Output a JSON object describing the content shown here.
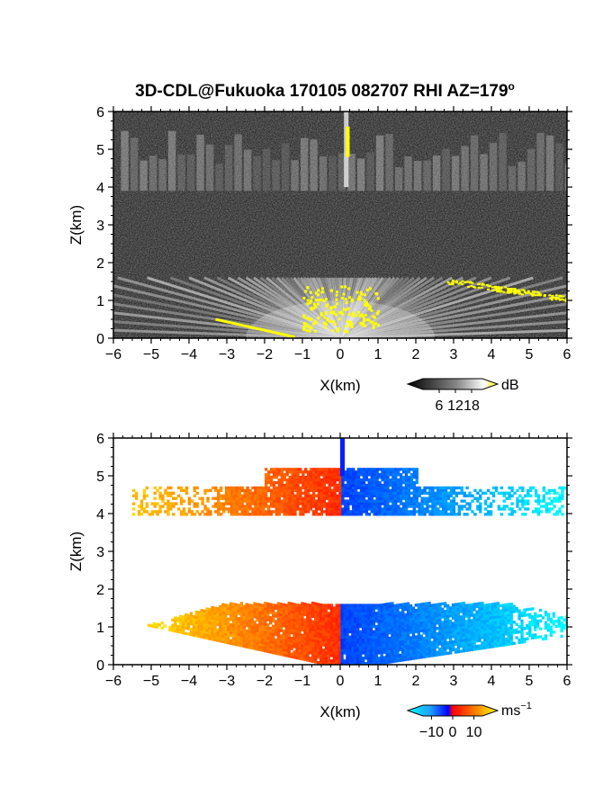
{
  "figure": {
    "title": "3D-CDL@Fukuoka 170105 082707 RHI AZ=179",
    "title_superscript": "o"
  },
  "chart_data": [
    {
      "type": "heatmap",
      "title": "3D-CDL@Fukuoka 170105 082707 RHI AZ=179°",
      "xlabel": "X(km)",
      "ylabel": "Z(km)",
      "xlim": [
        -6,
        6
      ],
      "ylim": [
        0,
        6
      ],
      "x_ticks": [
        "−6",
        "−5",
        "−4",
        "−3",
        "−2",
        "−1",
        "0",
        "1",
        "2",
        "3",
        "4",
        "5",
        "6"
      ],
      "y_ticks": [
        "0",
        "1",
        "2",
        "3",
        "4",
        "5",
        "6"
      ],
      "colormap": "grayscale (dark to white, yellow for high values)",
      "colorbar": {
        "unit": "dB",
        "ticks": [
          "6",
          "12",
          "18"
        ],
        "range": [
          0,
          22
        ]
      },
      "features": [
        {
          "name": "boundary-layer echo fan",
          "z_range_km": [
            0,
            1.6
          ],
          "x_range_km": [
            -6,
            6
          ],
          "intensity_db": 14
        },
        {
          "name": "upper cloud layer",
          "z_range_km": [
            3.9,
            6.0
          ],
          "x_range_km": [
            -6,
            6
          ],
          "intensity_db": 10
        },
        {
          "name": "near-vertical strong echo",
          "z_range_km": [
            4.8,
            5.6
          ],
          "x_km": 0.15,
          "intensity_db": 20
        },
        {
          "name": "strong echo along top of fan",
          "z_range_km": [
            0.9,
            1.6
          ],
          "x_range_km": [
            2.8,
            6.0
          ],
          "intensity_db": 20
        }
      ]
    },
    {
      "type": "heatmap",
      "xlabel": "X(km)",
      "ylabel": "Z(km)",
      "xlim": [
        -6,
        6
      ],
      "ylim": [
        0,
        6
      ],
      "x_ticks": [
        "−6",
        "−5",
        "−4",
        "−3",
        "−2",
        "−1",
        "0",
        "1",
        "2",
        "3",
        "4",
        "5",
        "6"
      ],
      "y_ticks": [
        "0",
        "1",
        "2",
        "3",
        "4",
        "5",
        "6"
      ],
      "colormap": "diverging (cyan/blue negative, red/orange/yellow positive)",
      "colorbar": {
        "unit": "ms",
        "unit_exponent": "−1",
        "ticks": [
          "−10",
          "0",
          "10"
        ],
        "range": [
          -14,
          14
        ]
      },
      "features": [
        {
          "name": "lower layer, left of radar",
          "z_range_km": [
            0,
            1.6
          ],
          "x_range_km": [
            -5.8,
            0
          ],
          "velocity_ms": [
            2,
            12
          ]
        },
        {
          "name": "lower layer, right of radar",
          "z_range_km": [
            0,
            1.6
          ],
          "x_range_km": [
            0,
            6
          ],
          "velocity_ms": [
            -12,
            -3
          ]
        },
        {
          "name": "upper layer, left of radar",
          "z_range_km": [
            3.9,
            5.8
          ],
          "x_range_km": [
            -5.5,
            0
          ],
          "velocity_ms": [
            2,
            10
          ]
        },
        {
          "name": "upper layer, right of radar",
          "z_range_km": [
            3.9,
            6.0
          ],
          "x_range_km": [
            0,
            6
          ],
          "velocity_ms": [
            -12,
            -3
          ]
        }
      ]
    }
  ]
}
